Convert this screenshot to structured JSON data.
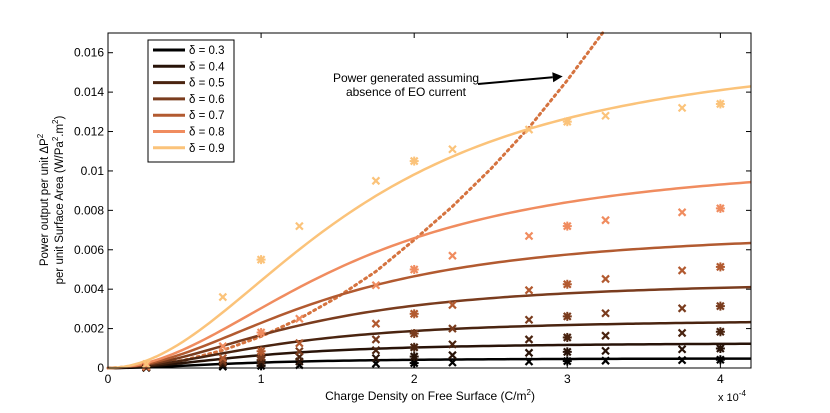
{
  "chart_data": {
    "type": "line",
    "title": "",
    "xlabel": "Charge Density on Free Surface (C/m",
    "xlabel_sup": "2",
    "xlabel_end": ")",
    "x_multiplier": "x 10",
    "x_multiplier_exp": "-4",
    "ylabel_line1_pre": "Power output per unit ΔP",
    "ylabel_line1_sup": "2",
    "ylabel_line2_pre": "per unit Surface Area (W/Pa",
    "ylabel_line2_sup1": "2",
    "ylabel_line2_mid": ".m",
    "ylabel_line2_sup2": "2",
    "ylabel_line2_end": ")",
    "xlim": [
      0,
      4.2
    ],
    "ylim": [
      0,
      0.017
    ],
    "xticks": [
      0,
      1,
      2,
      3,
      4
    ],
    "xtick_labels": [
      "0",
      "1",
      "2",
      "3",
      "4"
    ],
    "yticks": [
      0,
      0.002,
      0.004,
      0.006,
      0.008,
      0.01,
      0.012,
      0.014,
      0.016
    ],
    "ytick_labels": [
      "0",
      "0.002",
      "0.004",
      "0.006",
      "0.008",
      "0.01",
      "0.012",
      "0.014",
      "0.016"
    ],
    "legend_placement": "top-left",
    "annotation": {
      "line1": "Power generated assuming",
      "line2": "absence of EO current",
      "arrow_points_to": {
        "x": 2.97,
        "y": 0.0148
      }
    },
    "marker_x": [
      0.25,
      0.75,
      1.0,
      1.25,
      1.75,
      2.0,
      2.25,
      2.75,
      3.0,
      3.25,
      3.75,
      4.0
    ],
    "series": [
      {
        "name": "δ = 0.3",
        "label_prefix": "δ = ",
        "label_value": "0.3",
        "color": "#000000",
        "saturation": 0.0005,
        "ctrl": 0.9,
        "values": [
          1e-05,
          7e-05,
          0.00011,
          0.00015,
          0.00022,
          0.00025,
          0.00028,
          0.00033,
          0.00035,
          0.00037,
          0.0004,
          0.00042
        ]
      },
      {
        "name": "δ = 0.4",
        "label_prefix": "δ = ",
        "label_value": "0.4",
        "color": "#281308",
        "saturation": 0.0013,
        "ctrl": 1.0,
        "values": [
          2e-05,
          0.00015,
          0.00023,
          0.00033,
          0.0005,
          0.00058,
          0.00065,
          0.00077,
          0.00082,
          0.00087,
          0.00095,
          0.00099
        ]
      },
      {
        "name": "δ = 0.5",
        "label_prefix": "δ = ",
        "label_value": "0.5",
        "color": "#4a2410",
        "saturation": 0.0025,
        "ctrl": 1.15,
        "values": [
          3e-05,
          0.00026,
          0.0004,
          0.00056,
          0.0009,
          0.00105,
          0.0012,
          0.00145,
          0.00155,
          0.00164,
          0.00178,
          0.00184
        ]
      },
      {
        "name": "δ = 0.6",
        "label_prefix": "δ = ",
        "label_value": "0.6",
        "color": "#7a3c1e",
        "saturation": 0.0045,
        "ctrl": 1.3,
        "values": [
          4e-05,
          0.00035,
          0.00058,
          0.00085,
          0.00145,
          0.00175,
          0.002,
          0.00245,
          0.00262,
          0.00278,
          0.00303,
          0.00314
        ]
      },
      {
        "name": "δ = 0.7",
        "label_prefix": "δ = ",
        "label_value": "0.7",
        "color": "#b25a30",
        "saturation": 0.0071,
        "ctrl": 1.45,
        "values": [
          6e-05,
          0.0005,
          0.00085,
          0.00126,
          0.00225,
          0.00275,
          0.0032,
          0.00395,
          0.00425,
          0.00452,
          0.00495,
          0.00513
        ]
      },
      {
        "name": "δ = 0.8",
        "label_prefix": "δ = ",
        "label_value": "0.8",
        "color": "#f08c5f",
        "saturation": 0.0108,
        "ctrl": 1.6,
        "values": [
          0.0001,
          0.0011,
          0.0018,
          0.0025,
          0.0042,
          0.005,
          0.0057,
          0.0067,
          0.0072,
          0.0075,
          0.0079,
          0.0081
        ]
      },
      {
        "name": "δ = 0.9",
        "label_prefix": "δ = ",
        "label_value": "0.9",
        "color": "#fbc37a",
        "saturation": 0.0165,
        "ctrl": 1.65,
        "values": [
          0.0002,
          0.0036,
          0.0055,
          0.0072,
          0.0095,
          0.0105,
          0.0111,
          0.0121,
          0.0125,
          0.0128,
          0.0132,
          0.0134
        ]
      }
    ],
    "dotted_series": {
      "name": "Power generated assuming absence of EO current",
      "color": "#d5733f",
      "x": [
        0,
        0.25,
        0.5,
        0.75,
        1.0,
        1.25,
        1.5,
        1.75,
        2.0,
        2.25,
        2.5,
        2.75,
        3.0,
        3.25,
        3.3
      ],
      "values": [
        0,
        0.0001,
        0.0004,
        0.0009,
        0.0016,
        0.0025,
        0.0036,
        0.0049,
        0.0065,
        0.0082,
        0.0101,
        0.0122,
        0.0146,
        0.0172,
        0.0175
      ]
    }
  }
}
